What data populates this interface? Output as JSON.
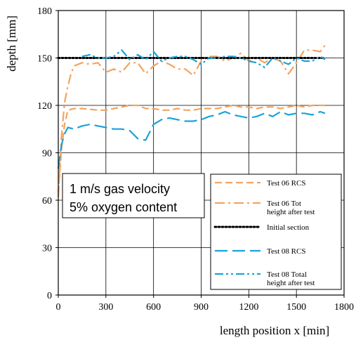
{
  "chart_data": {
    "type": "line",
    "xlabel": "length position x [min]",
    "ylabel": "depth [mm]",
    "xlim": [
      0,
      1800
    ],
    "ylim": [
      0,
      180
    ],
    "xticks": [
      0,
      300,
      600,
      900,
      1200,
      1500,
      1800
    ],
    "yticks": [
      0,
      30,
      60,
      90,
      120,
      150,
      180
    ],
    "grid": true,
    "legend_position": "bottom-right",
    "annotation": [
      "1 m/s gas velocity",
      "5% oxygen content"
    ],
    "series": [
      {
        "name": "Test 06 RCS",
        "color": "#F4A460",
        "dash": "dash",
        "x": [
          0,
          20,
          40,
          60,
          100,
          150,
          200,
          250,
          300,
          350,
          400,
          450,
          500,
          550,
          600,
          650,
          700,
          750,
          800,
          850,
          900,
          950,
          1000,
          1050,
          1100,
          1150,
          1200,
          1250,
          1300,
          1350,
          1400,
          1450,
          1500,
          1550,
          1600,
          1650,
          1680
        ],
        "y": [
          65,
          92,
          108,
          117,
          118,
          118,
          117.5,
          117,
          117,
          118,
          119,
          120,
          120,
          118,
          118,
          117,
          117,
          118,
          117,
          117,
          118,
          118,
          118,
          119,
          120,
          119,
          119,
          118,
          119,
          119,
          118,
          119,
          120,
          119,
          120,
          120,
          120
        ]
      },
      {
        "name": "Test 06 Tot height after test",
        "color": "#F4A460",
        "dash": "dashdot",
        "x": [
          0,
          20,
          40,
          60,
          80,
          100,
          150,
          200,
          250,
          300,
          350,
          400,
          450,
          500,
          550,
          600,
          650,
          700,
          750,
          800,
          850,
          900,
          950,
          1000,
          1050,
          1100,
          1150,
          1200,
          1250,
          1300,
          1350,
          1400,
          1450,
          1500,
          1550,
          1600,
          1650,
          1680
        ],
        "y": [
          62,
          100,
          122,
          132,
          140,
          145,
          147,
          146,
          147,
          141,
          143,
          141,
          147,
          147,
          140,
          145,
          148,
          146,
          143,
          143,
          139,
          148,
          151,
          151,
          148,
          150,
          153,
          148,
          150,
          147,
          150,
          148,
          140,
          147,
          155,
          155,
          154,
          158
        ]
      },
      {
        "name": "Initial section",
        "color": "#000000",
        "dash": "dot",
        "x": [
          0,
          1680
        ],
        "y": [
          150,
          150
        ]
      },
      {
        "name": "Test 08 RCS",
        "color": "#1AA3D9",
        "dash": "longdash",
        "x": [
          0,
          20,
          40,
          60,
          100,
          150,
          200,
          250,
          300,
          350,
          400,
          450,
          500,
          550,
          600,
          650,
          700,
          750,
          800,
          850,
          900,
          950,
          1000,
          1050,
          1100,
          1150,
          1200,
          1250,
          1300,
          1350,
          1400,
          1450,
          1500,
          1550,
          1600,
          1650,
          1680
        ],
        "y": [
          80,
          95,
          102,
          106,
          105,
          107,
          108,
          107,
          106,
          105,
          105,
          104,
          99,
          98,
          108,
          111,
          112,
          111,
          110,
          110,
          111,
          113,
          114,
          116,
          114,
          113,
          112,
          113,
          115,
          113,
          116,
          114,
          115,
          115,
          114,
          116,
          115
        ]
      },
      {
        "name": "Test 08 Total height after test",
        "color": "#1AA3D9",
        "dash": "dashdotdot",
        "x": [
          150,
          200,
          250,
          300,
          350,
          400,
          450,
          500,
          550,
          600,
          650,
          700,
          750,
          800,
          850,
          900,
          950,
          1000,
          1050,
          1100,
          1150,
          1200,
          1250,
          1300,
          1350,
          1400,
          1450,
          1500,
          1550,
          1600,
          1650,
          1680
        ],
        "y": [
          151,
          152,
          150,
          150,
          151,
          155,
          149,
          152,
          149,
          154,
          148,
          150,
          151,
          151,
          149,
          146,
          150,
          150,
          151,
          151,
          150,
          148,
          147,
          144,
          150,
          148,
          146,
          150,
          148,
          148,
          151,
          149
        ]
      }
    ]
  }
}
